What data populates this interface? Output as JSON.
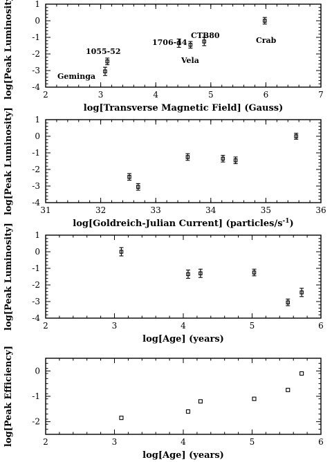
{
  "chart_data": [
    {
      "type": "scatter",
      "xlabel": "log[Transverse Magnetic Field] (Gauss)",
      "ylabel": "log[Peak Luminosity]",
      "xlim": [
        2,
        7
      ],
      "ylim": [
        -4,
        1
      ],
      "xticks": [
        "2",
        "3",
        "4",
        "5",
        "6",
        "7"
      ],
      "yticks": [
        "-4",
        "-3",
        "-2",
        "-1",
        "0",
        "1"
      ],
      "series": [
        {
          "points": [
            {
              "x": 3.08,
              "y": -3.05,
              "err": 0.25
            },
            {
              "x": 3.12,
              "y": -2.45,
              "err": 0.2
            },
            {
              "x": 4.42,
              "y": -1.35,
              "err": 0.25
            },
            {
              "x": 4.63,
              "y": -1.45,
              "err": 0.2
            },
            {
              "x": 4.88,
              "y": -1.25,
              "err": 0.25
            },
            {
              "x": 5.98,
              "y": 0.0,
              "err": 0.2
            }
          ]
        }
      ],
      "annotations": [
        "Geminga",
        "1055-52",
        "1706-44",
        "CTB80",
        "Vela",
        "Crab"
      ]
    },
    {
      "type": "scatter",
      "xlabel": "log[Goldreich-Julian Current] (particles/s",
      "xlabel_sup": "-1",
      "xlabel_close": ")",
      "ylabel": "log[Peak Luminosity]",
      "xlim": [
        31,
        36
      ],
      "ylim": [
        -4,
        1
      ],
      "xticks": [
        "31",
        "32",
        "33",
        "34",
        "35",
        "36"
      ],
      "yticks": [
        "-4",
        "-3",
        "-2",
        "-1",
        "0",
        "1"
      ],
      "series": [
        {
          "points": [
            {
              "x": 32.52,
              "y": -2.45,
              "err": 0.2
            },
            {
              "x": 32.68,
              "y": -3.05,
              "err": 0.2
            },
            {
              "x": 33.58,
              "y": -1.25,
              "err": 0.2
            },
            {
              "x": 34.22,
              "y": -1.35,
              "err": 0.2
            },
            {
              "x": 34.45,
              "y": -1.45,
              "err": 0.2
            },
            {
              "x": 35.55,
              "y": 0.0,
              "err": 0.18
            }
          ]
        }
      ]
    },
    {
      "type": "scatter",
      "xlabel": "log[Age] (years)",
      "ylabel": "log[Peak Luminosity]",
      "xlim": [
        2,
        6
      ],
      "ylim": [
        -4,
        1
      ],
      "xticks": [
        "2",
        "3",
        "4",
        "5",
        "6"
      ],
      "yticks": [
        "-4",
        "-3",
        "-2",
        "-1",
        "0",
        "1"
      ],
      "series": [
        {
          "points": [
            {
              "x": 3.1,
              "y": 0.0,
              "err": 0.25
            },
            {
              "x": 4.07,
              "y": -1.35,
              "err": 0.25
            },
            {
              "x": 4.25,
              "y": -1.3,
              "err": 0.25
            },
            {
              "x": 5.03,
              "y": -1.25,
              "err": 0.2
            },
            {
              "x": 5.52,
              "y": -3.05,
              "err": 0.2
            },
            {
              "x": 5.72,
              "y": -2.45,
              "err": 0.25
            }
          ]
        }
      ]
    },
    {
      "type": "scatter",
      "xlabel": "log[Age] (years)",
      "ylabel": "log[Peak Efficiency]",
      "xlim": [
        2,
        6
      ],
      "ylim": [
        -2.5,
        0.5
      ],
      "xticks": [
        "2",
        "3",
        "4",
        "5",
        "6"
      ],
      "yticks": [
        "-2",
        "-1",
        "0"
      ],
      "series": [
        {
          "points": [
            {
              "x": 3.1,
              "y": -1.85
            },
            {
              "x": 4.07,
              "y": -1.6
            },
            {
              "x": 4.25,
              "y": -1.2
            },
            {
              "x": 5.03,
              "y": -1.1
            },
            {
              "x": 5.52,
              "y": -0.75
            },
            {
              "x": 5.72,
              "y": -0.1
            }
          ]
        }
      ]
    }
  ]
}
